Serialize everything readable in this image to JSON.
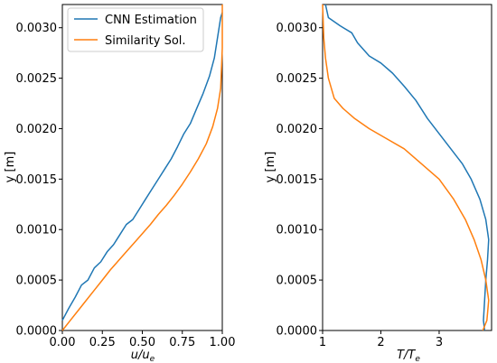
{
  "colors": {
    "cnn": "#1f77b4",
    "similarity": "#ff7f0e"
  },
  "chart_data": [
    {
      "type": "line",
      "xlabel": "u/u",
      "xlabel_sub": "e",
      "ylabel": "y [m]",
      "xlim": [
        0.0,
        1.0
      ],
      "ylim": [
        0.0,
        0.00323
      ],
      "xticks": [
        "0.00",
        "0.25",
        "0.50",
        "0.75",
        "1.00"
      ],
      "xtick_values": [
        0.0,
        0.25,
        0.5,
        0.75,
        1.0
      ],
      "yticks": [
        "0.0000",
        "0.0005",
        "0.0010",
        "0.0015",
        "0.0020",
        "0.0025",
        "0.0030"
      ],
      "ytick_values": [
        0.0,
        0.0005,
        0.001,
        0.0015,
        0.002,
        0.0025,
        0.003
      ],
      "legend": {
        "placement": "top-left",
        "entries": [
          "CNN Estimation",
          "Similarity Sol."
        ]
      },
      "grid": false,
      "series": [
        {
          "name": "CNN Estimation",
          "color": "#1f77b4",
          "x": [
            0.0,
            0.04,
            0.08,
            0.12,
            0.16,
            0.2,
            0.24,
            0.28,
            0.32,
            0.36,
            0.4,
            0.44,
            0.48,
            0.52,
            0.56,
            0.6,
            0.64,
            0.68,
            0.72,
            0.76,
            0.8,
            0.84,
            0.88,
            0.92,
            0.95,
            0.97,
            0.99,
            1.0
          ],
          "y": [
            0.0001,
            0.00022,
            0.00033,
            0.00045,
            0.0005,
            0.00062,
            0.00068,
            0.00078,
            0.00085,
            0.00095,
            0.00105,
            0.0011,
            0.0012,
            0.0013,
            0.0014,
            0.0015,
            0.0016,
            0.0017,
            0.00182,
            0.00195,
            0.00205,
            0.0022,
            0.00235,
            0.00252,
            0.0027,
            0.0029,
            0.0031,
            0.00315
          ]
        },
        {
          "name": "Similarity Sol.",
          "color": "#ff7f0e",
          "x": [
            0.0,
            0.05,
            0.1,
            0.15,
            0.2,
            0.25,
            0.3,
            0.35,
            0.4,
            0.45,
            0.5,
            0.55,
            0.6,
            0.65,
            0.7,
            0.75,
            0.8,
            0.85,
            0.9,
            0.94,
            0.97,
            0.99,
            1.0,
            1.0
          ],
          "y": [
            0.0,
            0.0001,
            0.0002,
            0.0003,
            0.0004,
            0.0005,
            0.0006,
            0.00069,
            0.00078,
            0.00087,
            0.00096,
            0.00105,
            0.00115,
            0.00124,
            0.00134,
            0.00145,
            0.00157,
            0.0017,
            0.00185,
            0.00202,
            0.0022,
            0.0024,
            0.0028,
            0.00323
          ]
        }
      ]
    },
    {
      "type": "line",
      "xlabel": "T/T",
      "xlabel_sub": "e",
      "ylabel": "y [m]",
      "xlim": [
        1.0,
        3.9
      ],
      "ylim": [
        0.0,
        0.00323
      ],
      "xticks": [
        "1",
        "2",
        "3"
      ],
      "xtick_values": [
        1,
        2,
        3
      ],
      "yticks": [
        "0.0000",
        "0.0005",
        "0.0010",
        "0.0015",
        "0.0020",
        "0.0025",
        "0.0030"
      ],
      "ytick_values": [
        0.0,
        0.0005,
        0.001,
        0.0015,
        0.002,
        0.0025,
        0.003
      ],
      "grid": false,
      "series": [
        {
          "name": "CNN Estimation",
          "color": "#1f77b4",
          "x": [
            1.05,
            1.1,
            1.3,
            1.5,
            1.6,
            1.8,
            2.0,
            2.2,
            2.4,
            2.6,
            2.8,
            3.0,
            3.2,
            3.4,
            3.55,
            3.7,
            3.8,
            3.85,
            3.83,
            3.8,
            3.78,
            3.76,
            3.78
          ],
          "y": [
            0.00323,
            0.0031,
            0.00302,
            0.00295,
            0.00285,
            0.00272,
            0.00265,
            0.00255,
            0.00242,
            0.00228,
            0.0021,
            0.00195,
            0.0018,
            0.00165,
            0.0015,
            0.0013,
            0.0011,
            0.0009,
            0.0007,
            0.0005,
            0.0003,
            0.0001,
            0.0
          ]
        },
        {
          "name": "Similarity Sol.",
          "color": "#ff7f0e",
          "x": [
            1.0,
            1.02,
            1.05,
            1.1,
            1.2,
            1.35,
            1.55,
            1.8,
            2.1,
            2.4,
            2.7,
            3.0,
            3.25,
            3.45,
            3.6,
            3.72,
            3.8,
            3.85,
            3.82,
            3.75
          ],
          "y": [
            0.00323,
            0.0029,
            0.0027,
            0.0025,
            0.0023,
            0.0022,
            0.0021,
            0.002,
            0.0019,
            0.0018,
            0.00165,
            0.0015,
            0.0013,
            0.0011,
            0.0009,
            0.0007,
            0.0005,
            0.0003,
            0.0001,
            0.0
          ]
        }
      ]
    }
  ]
}
